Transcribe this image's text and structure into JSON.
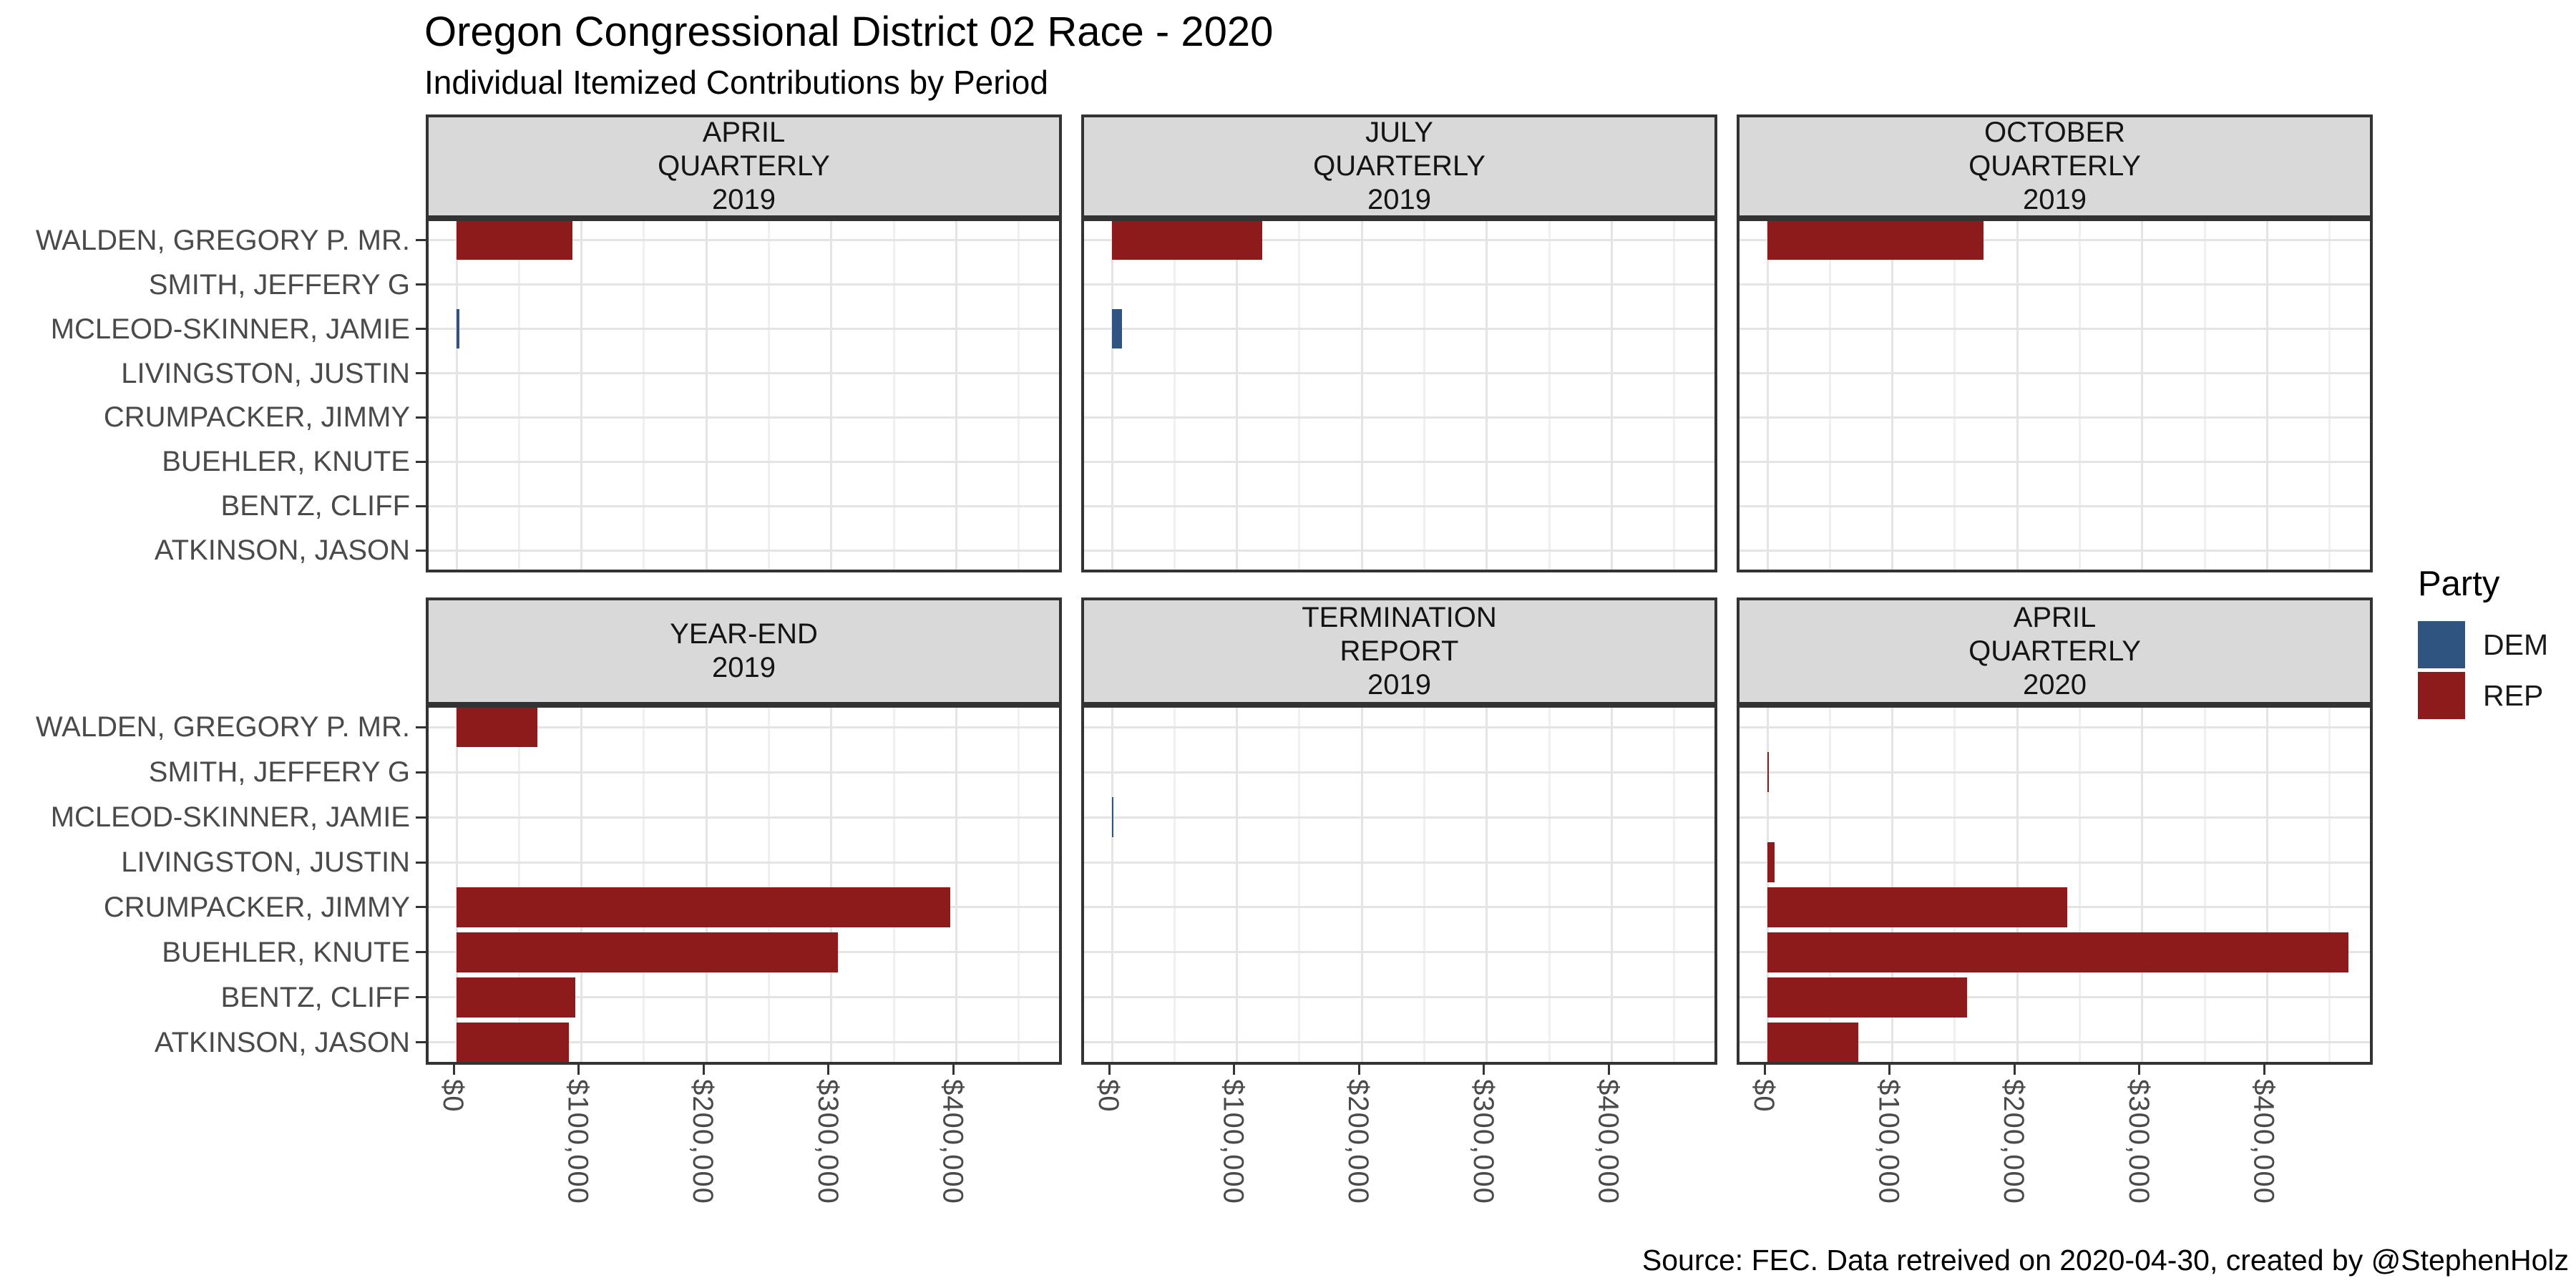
{
  "title": "Oregon Congressional District 02 Race - 2020",
  "subtitle": "Individual Itemized Contributions by Period",
  "caption": "Source: FEC. Data retreived on 2020-04-30, created by @StephenHolz",
  "legend": {
    "title": "Party",
    "items": [
      {
        "label": "DEM",
        "color": "#2F5480"
      },
      {
        "label": "REP",
        "color": "#8E1B1B"
      }
    ]
  },
  "chart_data": {
    "type": "bar",
    "orientation": "horizontal",
    "title": "Oregon Congressional District 02 Race - 2020",
    "subtitle": "Individual Itemized Contributions by Period",
    "categories": [
      "WALDEN, GREGORY P. MR.",
      "SMITH, JEFFERY G",
      "MCLEOD-SKINNER, JAMIE",
      "LIVINGSTON, JUSTIN",
      "CRUMPACKER, JIMMY",
      "BUEHLER, KNUTE",
      "BENTZ, CLIFF",
      "ATKINSON, JASON"
    ],
    "x_tick_labels": [
      "$0",
      "$100,000",
      "$200,000",
      "$300,000",
      "$400,000"
    ],
    "x_tick_values": [
      0,
      100000,
      200000,
      300000,
      400000
    ],
    "x_max": 487000,
    "x_tick_rotation": -90,
    "grid": "on",
    "legend_position": "right",
    "facets": [
      {
        "label_lines": [
          "APRIL",
          "QUARTERLY",
          "2019"
        ],
        "bars": [
          {
            "candidate": "WALDEN, GREGORY P. MR.",
            "party": "REP",
            "value": 93000
          },
          {
            "candidate": "MCLEOD-SKINNER, JAMIE",
            "party": "DEM",
            "value": 2500
          }
        ]
      },
      {
        "label_lines": [
          "JULY",
          "QUARTERLY",
          "2019"
        ],
        "bars": [
          {
            "candidate": "WALDEN, GREGORY P. MR.",
            "party": "REP",
            "value": 120000
          },
          {
            "candidate": "MCLEOD-SKINNER, JAMIE",
            "party": "DEM",
            "value": 8000
          }
        ]
      },
      {
        "label_lines": [
          "OCTOBER",
          "QUARTERLY",
          "2019"
        ],
        "bars": [
          {
            "candidate": "WALDEN, GREGORY P. MR.",
            "party": "REP",
            "value": 173000
          }
        ]
      },
      {
        "label_lines": [
          "YEAR-END",
          "2019"
        ],
        "bars": [
          {
            "candidate": "WALDEN, GREGORY P. MR.",
            "party": "REP",
            "value": 65000
          },
          {
            "candidate": "CRUMPACKER, JIMMY",
            "party": "REP",
            "value": 395000
          },
          {
            "candidate": "BUEHLER, KNUTE",
            "party": "REP",
            "value": 305000
          },
          {
            "candidate": "BENTZ, CLIFF",
            "party": "REP",
            "value": 95000
          },
          {
            "candidate": "ATKINSON, JASON",
            "party": "REP",
            "value": 90000
          }
        ]
      },
      {
        "label_lines": [
          "TERMINATION",
          "REPORT",
          "2019"
        ],
        "bars": [
          {
            "candidate": "MCLEOD-SKINNER, JAMIE",
            "party": "DEM",
            "value": 1200
          }
        ]
      },
      {
        "label_lines": [
          "APRIL",
          "QUARTERLY",
          "2020"
        ],
        "bars": [
          {
            "candidate": "SMITH, JEFFERY G",
            "party": "REP",
            "value": 1000
          },
          {
            "candidate": "LIVINGSTON, JUSTIN",
            "party": "REP",
            "value": 6000
          },
          {
            "candidate": "CRUMPACKER, JIMMY",
            "party": "REP",
            "value": 240000
          },
          {
            "candidate": "BUEHLER, KNUTE",
            "party": "REP",
            "value": 465000
          },
          {
            "candidate": "BENTZ, CLIFF",
            "party": "REP",
            "value": 160000
          },
          {
            "candidate": "ATKINSON, JASON",
            "party": "REP",
            "value": 73000
          }
        ]
      }
    ]
  }
}
